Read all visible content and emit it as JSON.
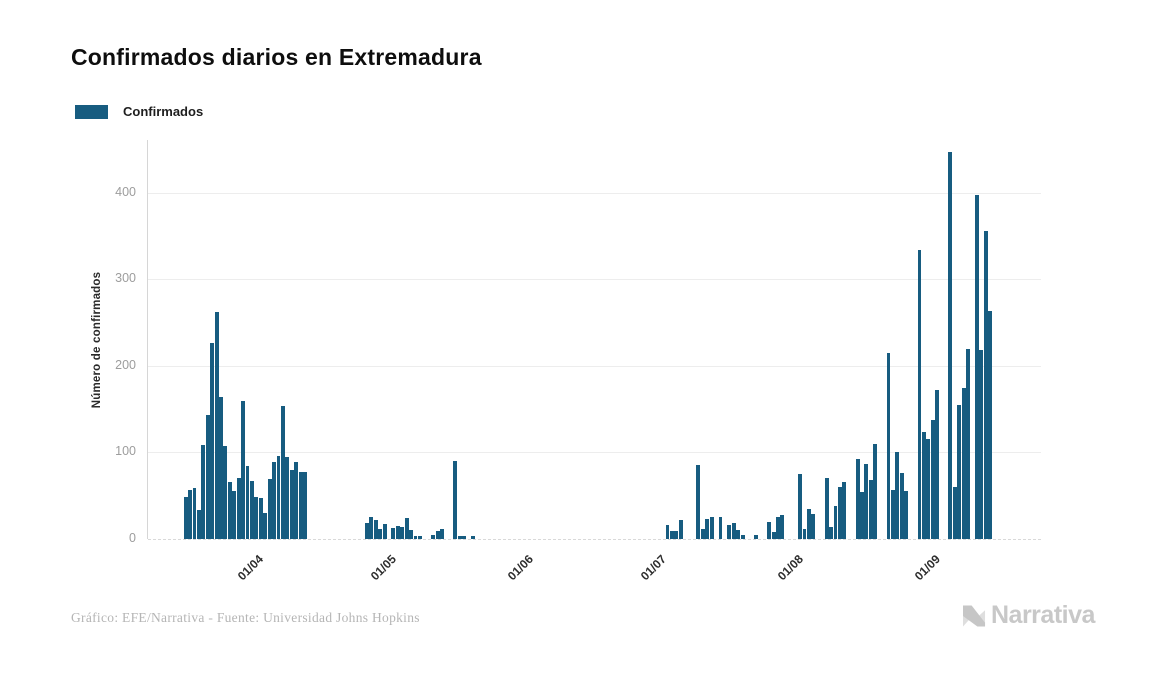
{
  "header": {
    "title": "Confirmados diarios en Extremadura"
  },
  "legend": {
    "items": [
      {
        "label": "Confirmados",
        "color": "#175c80"
      }
    ]
  },
  "chart_data": {
    "type": "bar",
    "title": "Confirmados diarios en Extremadura",
    "series_name": "Confirmados",
    "xlabel": "",
    "ylabel": "Número de confirmados",
    "ylim": [
      0,
      461
    ],
    "y_ticks": [
      0,
      100,
      200,
      300,
      400
    ],
    "grid": "horizontal",
    "legend_position": "top-left",
    "bar_color": "#175c80",
    "domain_days": 202,
    "x_ticks": [
      {
        "label": "01/04",
        "day": 24
      },
      {
        "label": "01/05",
        "day": 54
      },
      {
        "label": "01/06",
        "day": 85
      },
      {
        "label": "01/07",
        "day": 115
      },
      {
        "label": "01/08",
        "day": 146
      },
      {
        "label": "01/09",
        "day": 177
      }
    ],
    "bars": [
      {
        "d": 8,
        "v": 49
      },
      {
        "d": 9,
        "v": 57
      },
      {
        "d": 10,
        "v": 59
      },
      {
        "d": 11,
        "v": 33
      },
      {
        "d": 12,
        "v": 109
      },
      {
        "d": 13,
        "v": 143
      },
      {
        "d": 14,
        "v": 227
      },
      {
        "d": 15,
        "v": 262
      },
      {
        "d": 16,
        "v": 164
      },
      {
        "d": 17,
        "v": 108
      },
      {
        "d": 18,
        "v": 66
      },
      {
        "d": 19,
        "v": 55
      },
      {
        "d": 20,
        "v": 70
      },
      {
        "d": 21,
        "v": 160
      },
      {
        "d": 22,
        "v": 84
      },
      {
        "d": 23,
        "v": 67
      },
      {
        "d": 24,
        "v": 49
      },
      {
        "d": 25,
        "v": 47
      },
      {
        "d": 26,
        "v": 30
      },
      {
        "d": 27,
        "v": 69
      },
      {
        "d": 28,
        "v": 89
      },
      {
        "d": 29,
        "v": 96
      },
      {
        "d": 30,
        "v": 154
      },
      {
        "d": 31,
        "v": 95
      },
      {
        "d": 32,
        "v": 80
      },
      {
        "d": 33,
        "v": 89
      },
      {
        "d": 34,
        "v": 78
      },
      {
        "d": 35,
        "v": 78
      },
      {
        "d": 49,
        "v": 18
      },
      {
        "d": 50,
        "v": 25
      },
      {
        "d": 51,
        "v": 22
      },
      {
        "d": 52,
        "v": 11
      },
      {
        "d": 53,
        "v": 17
      },
      {
        "d": 55,
        "v": 13
      },
      {
        "d": 56,
        "v": 15
      },
      {
        "d": 57,
        "v": 14
      },
      {
        "d": 58,
        "v": 24
      },
      {
        "d": 59,
        "v": 10
      },
      {
        "d": 60,
        "v": 4
      },
      {
        "d": 61,
        "v": 3
      },
      {
        "d": 64,
        "v": 5
      },
      {
        "d": 65,
        "v": 9
      },
      {
        "d": 66,
        "v": 11
      },
      {
        "d": 69,
        "v": 90
      },
      {
        "d": 70,
        "v": 4
      },
      {
        "d": 71,
        "v": 3
      },
      {
        "d": 73,
        "v": 4
      },
      {
        "d": 117,
        "v": 16
      },
      {
        "d": 118,
        "v": 9
      },
      {
        "d": 119,
        "v": 9
      },
      {
        "d": 120,
        "v": 22
      },
      {
        "d": 124,
        "v": 86
      },
      {
        "d": 125,
        "v": 11
      },
      {
        "d": 126,
        "v": 23
      },
      {
        "d": 127,
        "v": 25
      },
      {
        "d": 129,
        "v": 25
      },
      {
        "d": 131,
        "v": 16
      },
      {
        "d": 132,
        "v": 19
      },
      {
        "d": 133,
        "v": 10
      },
      {
        "d": 134,
        "v": 5
      },
      {
        "d": 137,
        "v": 5
      },
      {
        "d": 140,
        "v": 20
      },
      {
        "d": 141,
        "v": 8
      },
      {
        "d": 142,
        "v": 25
      },
      {
        "d": 143,
        "v": 28
      },
      {
        "d": 147,
        "v": 75
      },
      {
        "d": 148,
        "v": 12
      },
      {
        "d": 149,
        "v": 35
      },
      {
        "d": 150,
        "v": 29
      },
      {
        "d": 153,
        "v": 71
      },
      {
        "d": 154,
        "v": 14
      },
      {
        "d": 155,
        "v": 38
      },
      {
        "d": 156,
        "v": 60
      },
      {
        "d": 157,
        "v": 66
      },
      {
        "d": 160,
        "v": 93
      },
      {
        "d": 161,
        "v": 54
      },
      {
        "d": 162,
        "v": 87
      },
      {
        "d": 163,
        "v": 68
      },
      {
        "d": 164,
        "v": 110
      },
      {
        "d": 167,
        "v": 215
      },
      {
        "d": 168,
        "v": 57
      },
      {
        "d": 169,
        "v": 101
      },
      {
        "d": 170,
        "v": 76
      },
      {
        "d": 171,
        "v": 56
      },
      {
        "d": 174,
        "v": 334
      },
      {
        "d": 175,
        "v": 124
      },
      {
        "d": 176,
        "v": 116
      },
      {
        "d": 177,
        "v": 138
      },
      {
        "d": 178,
        "v": 172
      },
      {
        "d": 181,
        "v": 447
      },
      {
        "d": 182,
        "v": 60
      },
      {
        "d": 183,
        "v": 155
      },
      {
        "d": 184,
        "v": 175
      },
      {
        "d": 185,
        "v": 220
      },
      {
        "d": 187,
        "v": 397
      },
      {
        "d": 188,
        "v": 218
      },
      {
        "d": 189,
        "v": 356
      },
      {
        "d": 190,
        "v": 264
      }
    ]
  },
  "footer": {
    "credit": "Gráfico: EFE/Narrativa - Fuente: Universidad Johns Hopkins",
    "logo_text": "Narrativa"
  }
}
